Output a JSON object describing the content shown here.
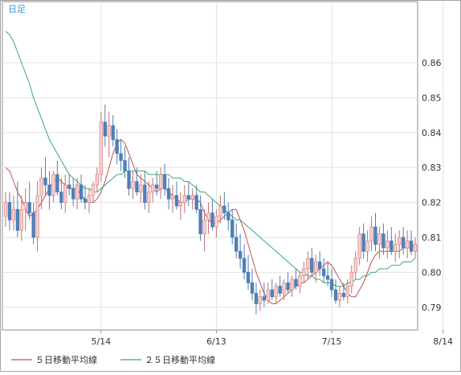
{
  "chart_data": {
    "type": "candlestick",
    "period_label": "日足",
    "y_ticks": [
      "0.79",
      "0.80",
      "0.81",
      "0.82",
      "0.83",
      "0.84",
      "0.85",
      "0.86"
    ],
    "ylim": [
      0.7835,
      0.8775
    ],
    "x_ticks": [
      {
        "label": "5/14",
        "index": 24
      },
      {
        "label": "6/13",
        "index": 53
      },
      {
        "label": "7/15",
        "index": 82
      },
      {
        "label": "8/14",
        "index": 110
      }
    ],
    "grid": true,
    "legend_position": "bottom-left",
    "colors": {
      "up": "#e48a8a",
      "down": "#4f7fb7",
      "ma5": "#c05050",
      "ma25": "#3aa878",
      "grid": "#e2e2e2",
      "axis": "#8f8f8f",
      "label": "#2a9ad8",
      "text": "#333333"
    },
    "series": [
      {
        "name": "５日移動平均線",
        "values": [
          0.83,
          0.829,
          0.826,
          0.823,
          0.821,
          0.818,
          0.816,
          0.817,
          0.818,
          0.82,
          0.822,
          0.824,
          0.826,
          0.827,
          0.826,
          0.825,
          0.824,
          0.824,
          0.824,
          0.822,
          0.821,
          0.82,
          0.82,
          0.821,
          0.823,
          0.826,
          0.83,
          0.834,
          0.837,
          0.838,
          0.837,
          0.834,
          0.831,
          0.828,
          0.827,
          0.826,
          0.825,
          0.824,
          0.823,
          0.824,
          0.824,
          0.823,
          0.822,
          0.821,
          0.82,
          0.82,
          0.821,
          0.821,
          0.821,
          0.82,
          0.817,
          0.815,
          0.814,
          0.814,
          0.815,
          0.816,
          0.817,
          0.818,
          0.818,
          0.815,
          0.812,
          0.808,
          0.804,
          0.8,
          0.797,
          0.794,
          0.792,
          0.791,
          0.791,
          0.792,
          0.793,
          0.794,
          0.795,
          0.796,
          0.797,
          0.797,
          0.798,
          0.799,
          0.8,
          0.801,
          0.802,
          0.803,
          0.802,
          0.8,
          0.798,
          0.796,
          0.794,
          0.793,
          0.793,
          0.795,
          0.797,
          0.8,
          0.803,
          0.805,
          0.806,
          0.806,
          0.806,
          0.806,
          0.806,
          0.806,
          0.807,
          0.807,
          0.807,
          0.808
        ]
      },
      {
        "name": "２５日移動平均線",
        "values": [
          0.869,
          0.868,
          0.866,
          0.863,
          0.86,
          0.857,
          0.854,
          0.85,
          0.847,
          0.844,
          0.841,
          0.838,
          0.836,
          0.834,
          0.832,
          0.83,
          0.828,
          0.827,
          0.826,
          0.825,
          0.824,
          0.824,
          0.823,
          0.823,
          0.824,
          0.825,
          0.826,
          0.827,
          0.828,
          0.828,
          0.829,
          0.829,
          0.829,
          0.829,
          0.829,
          0.829,
          0.828,
          0.828,
          0.828,
          0.828,
          0.828,
          0.828,
          0.827,
          0.827,
          0.827,
          0.826,
          0.826,
          0.825,
          0.824,
          0.823,
          0.823,
          0.822,
          0.821,
          0.82,
          0.819,
          0.818,
          0.817,
          0.816,
          0.815,
          0.815,
          0.814,
          0.813,
          0.812,
          0.811,
          0.81,
          0.809,
          0.808,
          0.807,
          0.806,
          0.805,
          0.804,
          0.803,
          0.802,
          0.801,
          0.8,
          0.8,
          0.799,
          0.799,
          0.798,
          0.798,
          0.797,
          0.797,
          0.797,
          0.796,
          0.796,
          0.796,
          0.797,
          0.797,
          0.798,
          0.798,
          0.799,
          0.799,
          0.8,
          0.8,
          0.801,
          0.801,
          0.801,
          0.802,
          0.802,
          0.802,
          0.803,
          0.803,
          0.803,
          0.804
        ]
      }
    ],
    "ohlc": [
      [
        0.816,
        0.823,
        0.813,
        0.82
      ],
      [
        0.82,
        0.823,
        0.812,
        0.815
      ],
      [
        0.815,
        0.822,
        0.812,
        0.818
      ],
      [
        0.818,
        0.826,
        0.81,
        0.812
      ],
      [
        0.812,
        0.822,
        0.809,
        0.818
      ],
      [
        0.818,
        0.824,
        0.812,
        0.82
      ],
      [
        0.82,
        0.826,
        0.815,
        0.817
      ],
      [
        0.817,
        0.82,
        0.808,
        0.81
      ],
      [
        0.81,
        0.826,
        0.806,
        0.822
      ],
      [
        0.822,
        0.83,
        0.818,
        0.827
      ],
      [
        0.827,
        0.833,
        0.822,
        0.825
      ],
      [
        0.825,
        0.829,
        0.818,
        0.822
      ],
      [
        0.822,
        0.829,
        0.82,
        0.828
      ],
      [
        0.828,
        0.832,
        0.822,
        0.823
      ],
      [
        0.823,
        0.827,
        0.818,
        0.82
      ],
      [
        0.82,
        0.828,
        0.817,
        0.825
      ],
      [
        0.825,
        0.828,
        0.822,
        0.824
      ],
      [
        0.824,
        0.827,
        0.819,
        0.821
      ],
      [
        0.821,
        0.827,
        0.818,
        0.825
      ],
      [
        0.825,
        0.828,
        0.82,
        0.821
      ],
      [
        0.821,
        0.825,
        0.818,
        0.82
      ],
      [
        0.82,
        0.824,
        0.817,
        0.822
      ],
      [
        0.822,
        0.826,
        0.82,
        0.825
      ],
      [
        0.825,
        0.83,
        0.823,
        0.828
      ],
      [
        0.828,
        0.846,
        0.826,
        0.843
      ],
      [
        0.843,
        0.848,
        0.836,
        0.839
      ],
      [
        0.839,
        0.846,
        0.833,
        0.842
      ],
      [
        0.842,
        0.845,
        0.836,
        0.838
      ],
      [
        0.838,
        0.841,
        0.831,
        0.834
      ],
      [
        0.834,
        0.838,
        0.829,
        0.832
      ],
      [
        0.832,
        0.836,
        0.827,
        0.829
      ],
      [
        0.829,
        0.833,
        0.822,
        0.824
      ],
      [
        0.824,
        0.829,
        0.821,
        0.826
      ],
      [
        0.826,
        0.83,
        0.822,
        0.823
      ],
      [
        0.823,
        0.828,
        0.82,
        0.825
      ],
      [
        0.825,
        0.829,
        0.818,
        0.82
      ],
      [
        0.82,
        0.826,
        0.817,
        0.823
      ],
      [
        0.823,
        0.827,
        0.82,
        0.825
      ],
      [
        0.825,
        0.829,
        0.822,
        0.824
      ],
      [
        0.824,
        0.83,
        0.821,
        0.828
      ],
      [
        0.828,
        0.831,
        0.822,
        0.824
      ],
      [
        0.824,
        0.827,
        0.818,
        0.821
      ],
      [
        0.821,
        0.825,
        0.817,
        0.822
      ],
      [
        0.822,
        0.826,
        0.818,
        0.819
      ],
      [
        0.819,
        0.823,
        0.815,
        0.82
      ],
      [
        0.82,
        0.825,
        0.817,
        0.822
      ],
      [
        0.822,
        0.826,
        0.819,
        0.821
      ],
      [
        0.821,
        0.824,
        0.818,
        0.822
      ],
      [
        0.822,
        0.825,
        0.817,
        0.818
      ],
      [
        0.818,
        0.822,
        0.809,
        0.811
      ],
      [
        0.811,
        0.818,
        0.806,
        0.815
      ],
      [
        0.815,
        0.82,
        0.811,
        0.817
      ],
      [
        0.817,
        0.821,
        0.812,
        0.813
      ],
      [
        0.813,
        0.818,
        0.81,
        0.816
      ],
      [
        0.816,
        0.822,
        0.814,
        0.819
      ],
      [
        0.819,
        0.823,
        0.815,
        0.817
      ],
      [
        0.817,
        0.82,
        0.812,
        0.815
      ],
      [
        0.815,
        0.818,
        0.808,
        0.81
      ],
      [
        0.81,
        0.814,
        0.804,
        0.806
      ],
      [
        0.806,
        0.811,
        0.801,
        0.804
      ],
      [
        0.804,
        0.808,
        0.798,
        0.8
      ],
      [
        0.8,
        0.805,
        0.795,
        0.797
      ],
      [
        0.797,
        0.801,
        0.792,
        0.794
      ],
      [
        0.794,
        0.797,
        0.788,
        0.791
      ],
      [
        0.791,
        0.795,
        0.789,
        0.793
      ],
      [
        0.793,
        0.797,
        0.79,
        0.792
      ],
      [
        0.792,
        0.797,
        0.791,
        0.795
      ],
      [
        0.795,
        0.798,
        0.792,
        0.793
      ],
      [
        0.793,
        0.797,
        0.791,
        0.796
      ],
      [
        0.796,
        0.799,
        0.793,
        0.794
      ],
      [
        0.794,
        0.798,
        0.792,
        0.797
      ],
      [
        0.797,
        0.8,
        0.794,
        0.795
      ],
      [
        0.795,
        0.799,
        0.793,
        0.798
      ],
      [
        0.798,
        0.801,
        0.795,
        0.796
      ],
      [
        0.796,
        0.8,
        0.794,
        0.799
      ],
      [
        0.799,
        0.803,
        0.797,
        0.801
      ],
      [
        0.801,
        0.806,
        0.798,
        0.804
      ],
      [
        0.804,
        0.807,
        0.799,
        0.8
      ],
      [
        0.8,
        0.805,
        0.797,
        0.803
      ],
      [
        0.803,
        0.806,
        0.799,
        0.801
      ],
      [
        0.801,
        0.804,
        0.797,
        0.799
      ],
      [
        0.799,
        0.803,
        0.796,
        0.798
      ],
      [
        0.798,
        0.801,
        0.793,
        0.795
      ],
      [
        0.795,
        0.798,
        0.791,
        0.792
      ],
      [
        0.792,
        0.796,
        0.79,
        0.794
      ],
      [
        0.794,
        0.797,
        0.792,
        0.793
      ],
      [
        0.793,
        0.798,
        0.791,
        0.796
      ],
      [
        0.796,
        0.802,
        0.794,
        0.8
      ],
      [
        0.8,
        0.806,
        0.798,
        0.804
      ],
      [
        0.804,
        0.813,
        0.802,
        0.811
      ],
      [
        0.811,
        0.814,
        0.804,
        0.806
      ],
      [
        0.806,
        0.812,
        0.803,
        0.809
      ],
      [
        0.809,
        0.816,
        0.806,
        0.813
      ],
      [
        0.813,
        0.817,
        0.806,
        0.808
      ],
      [
        0.808,
        0.813,
        0.804,
        0.811
      ],
      [
        0.811,
        0.814,
        0.805,
        0.807
      ],
      [
        0.807,
        0.812,
        0.804,
        0.809
      ],
      [
        0.809,
        0.813,
        0.805,
        0.806
      ],
      [
        0.806,
        0.811,
        0.803,
        0.808
      ],
      [
        0.808,
        0.812,
        0.804,
        0.81
      ],
      [
        0.81,
        0.813,
        0.805,
        0.807
      ],
      [
        0.807,
        0.812,
        0.804,
        0.809
      ],
      [
        0.809,
        0.812,
        0.805,
        0.806
      ],
      [
        0.806,
        0.81,
        0.804,
        0.808
      ]
    ]
  }
}
